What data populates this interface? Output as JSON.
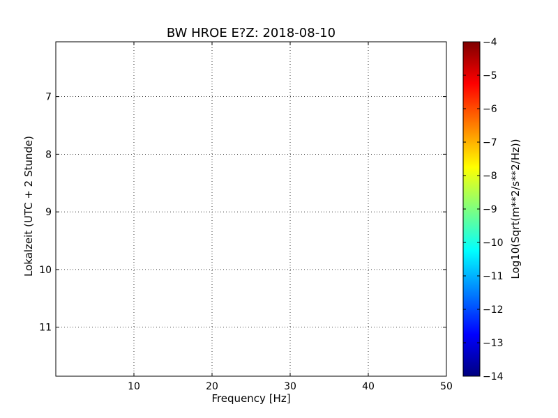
{
  "chart_data": {
    "type": "heatmap",
    "title": "BW HROE E?Z: 2018-08-10",
    "xlabel": "Frequency [Hz]",
    "ylabel": "Lokalzeit (UTC + 2 Stunde)",
    "xlim": [
      0,
      50
    ],
    "ylim": [
      11.85,
      6.05
    ],
    "y_axis_inverted": true,
    "xticks": [
      10,
      20,
      30,
      40,
      50
    ],
    "xtick_labels": [
      "10",
      "20",
      "30",
      "40",
      "50"
    ],
    "yticks": [
      7,
      8,
      9,
      10,
      11
    ],
    "ytick_labels": [
      "7",
      "8",
      "9",
      "10",
      "11"
    ],
    "grid": true,
    "grid_style": "dotted",
    "colormap": "jet",
    "colorbar": {
      "label": "Log10(Sqrt(m**2/s**2/Hz))",
      "range": [
        -14,
        -4
      ],
      "ticks": [
        -4,
        -5,
        -6,
        -7,
        -8,
        -9,
        -10,
        -11,
        -12,
        -13,
        -14
      ],
      "tick_labels": [
        "−4",
        "−5",
        "−6",
        "−7",
        "−8",
        "−9",
        "−10",
        "−11",
        "−12",
        "−13",
        "−14"
      ]
    },
    "spectral_profile": {
      "frequency_hz": [
        0,
        2,
        5,
        10,
        15,
        20,
        25,
        30,
        35,
        38,
        40,
        42,
        44,
        46,
        48,
        50
      ],
      "log10_amplitude": [
        -5.2,
        -5.5,
        -5.7,
        -5.8,
        -5.9,
        -5.95,
        -6.0,
        -6.05,
        -6.15,
        -6.35,
        -6.8,
        -7.5,
        -8.1,
        -8.7,
        -9.3,
        -9.9
      ]
    },
    "strong_bands": [
      {
        "time": 6.45,
        "f_from": 0,
        "f_to": 12,
        "log10_amplitude": -5.0
      },
      {
        "time": 7.95,
        "f_from": 0,
        "f_to": 3,
        "log10_amplitude": -4.9
      },
      {
        "time": 9.82,
        "f_from": 12,
        "f_to": 30,
        "log10_amplitude": -5.1
      },
      {
        "time": 11.4,
        "f_from": 0,
        "f_to": 7,
        "log10_amplitude": -5.0
      },
      {
        "time": 11.7,
        "f_from": 2,
        "f_to": 12,
        "log10_amplitude": -5.2
      }
    ]
  },
  "colors": {
    "jet_stops": [
      "#00007f",
      "#0000ff",
      "#007fff",
      "#00ffff",
      "#7fff7f",
      "#ffff00",
      "#ff7f00",
      "#ff0000",
      "#7f0000"
    ]
  }
}
